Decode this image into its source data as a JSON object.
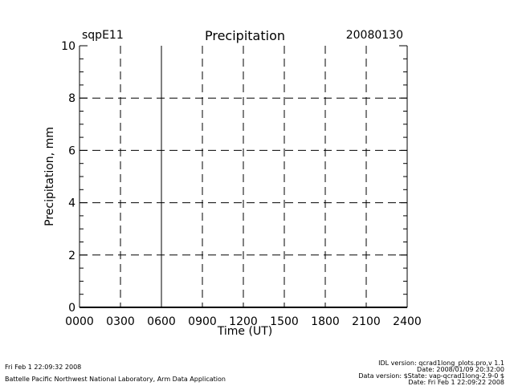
{
  "header": {
    "site": "sqpE11",
    "date": "20080130"
  },
  "chart_data": {
    "type": "line",
    "title": "Precipitation",
    "xlabel": "Time (UT)",
    "ylabel": "Precipitation, mm",
    "x_ticks": [
      "0000",
      "0300",
      "0600",
      "0900",
      "1200",
      "1500",
      "1800",
      "2100",
      "2400"
    ],
    "x_range": [
      0,
      24
    ],
    "y_ticks": [
      "0",
      "2",
      "4",
      "6",
      "8",
      "10"
    ],
    "ylim": [
      0,
      10
    ],
    "grid": true,
    "series": []
  },
  "footer": {
    "left_line1": "Fri Feb  1 22:09:32 2008",
    "left_line2": "Battelle Pacific Northwest National Laboratory, Arm Data Application",
    "right_line1": "IDL version: qcrad1long_plots.pro,v 1.1",
    "right_line2": "Date: 2008/01/09 20:32:00",
    "right_line3": "Data version: $State: vap-qcrad1long-2.9-0 $",
    "right_line4": "Date: Fri Feb  1 22:09:22 2008"
  }
}
